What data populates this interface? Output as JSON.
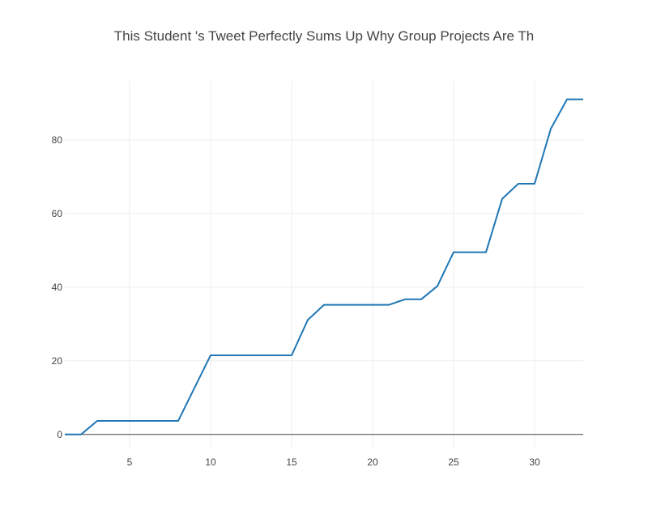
{
  "chart_data": {
    "type": "line",
    "title": "This Student 's Tweet Perfectly Sums Up Why Group Projects Are Th",
    "xlabel": "",
    "ylabel": "",
    "xlim": [
      1,
      33
    ],
    "ylim": [
      -4,
      96
    ],
    "x_ticks": [
      5,
      10,
      15,
      20,
      25,
      30
    ],
    "y_ticks": [
      0,
      20,
      40,
      60,
      80
    ],
    "grid": true,
    "legend": "none",
    "series": [
      {
        "color": "#1f77b4",
        "x": [
          1,
          2,
          3,
          4,
          5,
          6,
          7,
          8,
          9,
          10,
          11,
          12,
          13,
          14,
          15,
          16,
          17,
          18,
          19,
          20,
          21,
          22,
          23,
          24,
          25,
          26,
          27,
          28,
          29,
          30,
          31,
          32,
          33
        ],
        "y": [
          0,
          0,
          3.7,
          3.7,
          3.7,
          3.7,
          3.7,
          3.7,
          12.6,
          21.5,
          21.5,
          21.5,
          21.5,
          21.5,
          21.5,
          31.1,
          35.2,
          35.2,
          35.2,
          35.2,
          35.2,
          36.7,
          36.7,
          40.3,
          49.5,
          49.5,
          49.5,
          64,
          68.1,
          68.1,
          83,
          91,
          91
        ]
      }
    ]
  }
}
